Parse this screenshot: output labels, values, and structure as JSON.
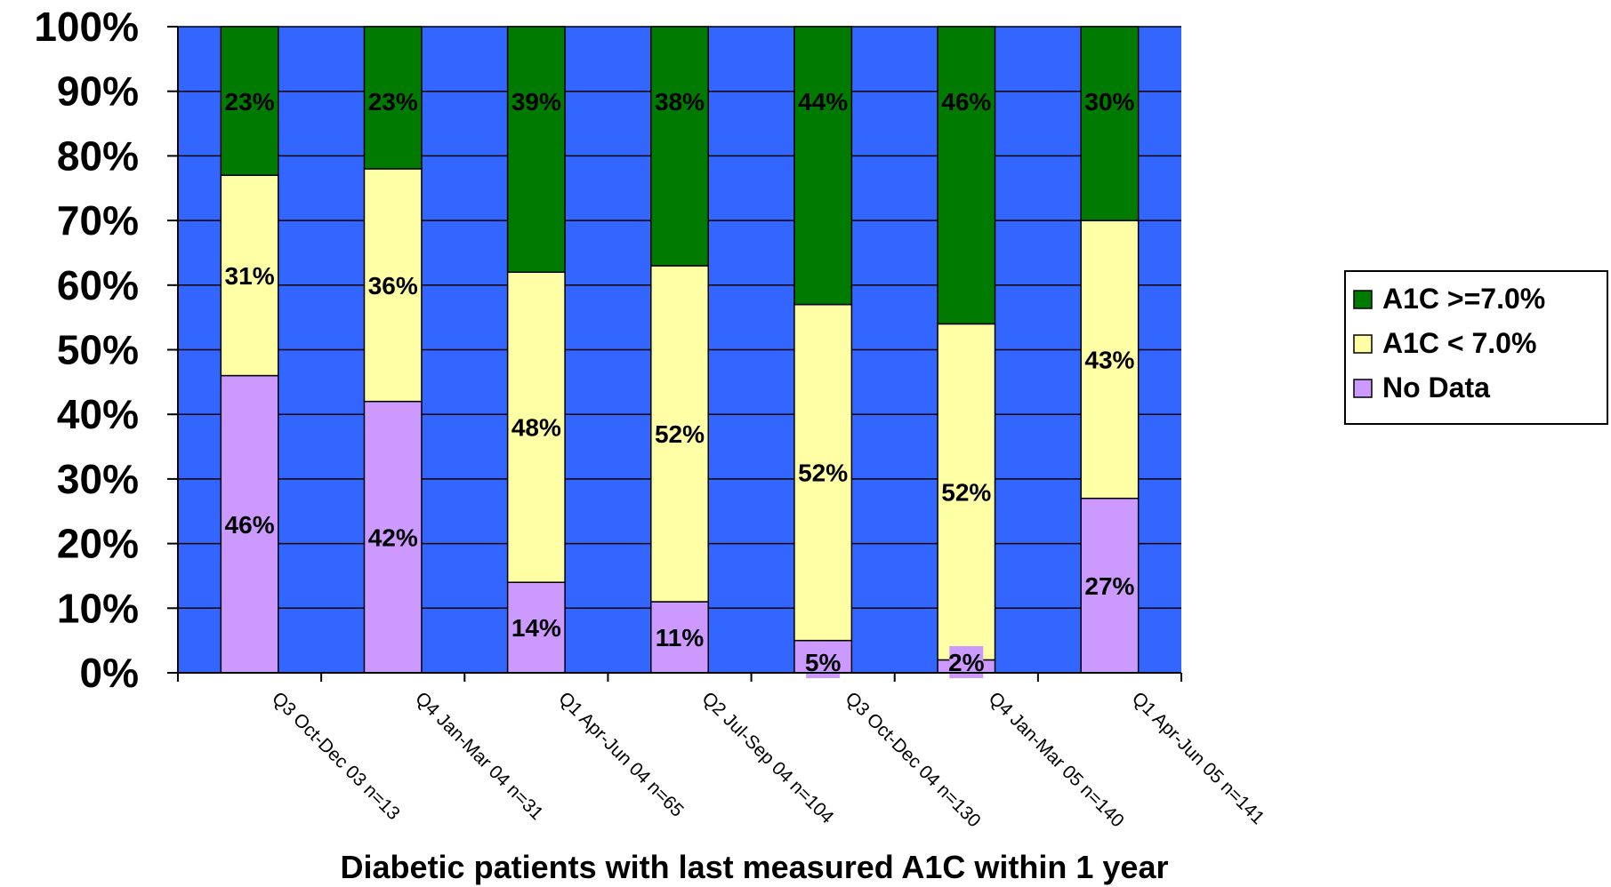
{
  "chart_data": {
    "type": "bar",
    "stacked": true,
    "percent_stacked": true,
    "categories": [
      "Q3 Oct-Dec 03  n=13",
      "Q4 Jan-Mar 04  n=31",
      "Q1 Apr-Jun 04  n=65",
      "Q2 Jul-Sep 04  n=104",
      "Q3 Oct-Dec 04  n=130",
      "Q4 Jan-Mar 05  n=140",
      "Q1 Apr-Jun 05  n=141"
    ],
    "series": [
      {
        "name": "No Data",
        "color": "#cc99ff",
        "values": [
          46,
          42,
          14,
          11,
          5,
          2,
          27
        ]
      },
      {
        "name": "A1C < 7.0%",
        "color": "#ffffa6",
        "values": [
          31,
          36,
          48,
          52,
          52,
          52,
          43
        ]
      },
      {
        "name": "A1C >=7.0%",
        "color": "#007a00",
        "values": [
          23,
          23,
          39,
          38,
          44,
          46,
          30
        ]
      }
    ],
    "data_labels": [
      [
        "46%",
        "42%",
        "14%",
        "11%",
        "5%",
        "2%",
        "27%"
      ],
      [
        "31%",
        "36%",
        "48%",
        "52%",
        "52%",
        "52%",
        "43%"
      ],
      [
        "23%",
        "23%",
        "39%",
        "38%",
        "44%",
        "46%",
        "30%"
      ]
    ],
    "xlabel": "Diabetic patients with last measured A1C within 1 year",
    "ylabel": "",
    "ylim": [
      0,
      100
    ],
    "yticks": [
      "0%",
      "10%",
      "20%",
      "30%",
      "40%",
      "50%",
      "60%",
      "70%",
      "80%",
      "90%",
      "100%"
    ],
    "grid": true,
    "plot_background": "#3366ff",
    "legend_position": "right",
    "legend_order": [
      "A1C >=7.0%",
      "A1C < 7.0%",
      "No Data"
    ]
  }
}
